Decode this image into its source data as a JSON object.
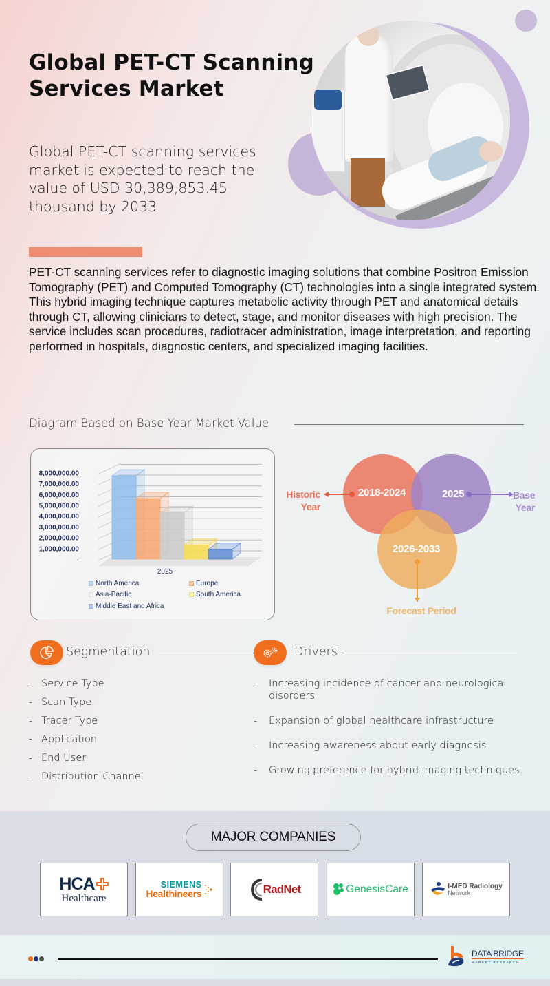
{
  "header": {
    "title": "Global PET-CT Scanning Services Market",
    "summary": "Global PET-CT scanning services market is expected to reach the value of USD 30,389,853.45 thousand by 2033."
  },
  "description": "PET-CT scanning services refer to diagnostic imaging solutions that combine Positron Emission Tomography (PET) and Computed Tomography (CT) technologies into a single integrated system. This hybrid imaging technique captures metabolic activity through PET and anatomical details through CT, allowing clinicians to detect, stage, and monitor diseases with high precision. The service includes scan procedures, radiotracer administration, image interpretation, and reporting performed in hospitals, diagnostic centers, and specialized imaging facilities.",
  "diagram": {
    "heading": "Diagram Based on Base Year Market Value"
  },
  "chart_data": {
    "type": "bar",
    "title": "",
    "xlabel": "",
    "ylabel": "",
    "categories": [
      "2025"
    ],
    "series": [
      {
        "name": "North America",
        "values": [
          7700000
        ],
        "color": "#8dbbea"
      },
      {
        "name": "Europe",
        "values": [
          5600000
        ],
        "color": "#f7a56f"
      },
      {
        "name": "Asia-Pacific",
        "values": [
          4300000
        ],
        "color": "#c9c9c9"
      },
      {
        "name": "South America",
        "values": [
          1300000
        ],
        "color": "#f7d94a"
      },
      {
        "name": "Middle East and Africa",
        "values": [
          900000
        ],
        "color": "#5f8bd6"
      }
    ],
    "y_ticks": [
      "-",
      "1,000,000.00",
      "2,000,000.00",
      "3,000,000.00",
      "4,000,000.00",
      "5,000,000.00",
      "6,000,000.00",
      "7,000,000.00",
      "8,000,000.00"
    ],
    "ylim": [
      0,
      9000000
    ],
    "grid": true,
    "legend_position": "bottom",
    "style": "3d-clustered-column"
  },
  "timeline": {
    "historic": {
      "range": "2018-2024",
      "label_line1": "Historic",
      "label_line2": "Year",
      "color": "#e8735b"
    },
    "base": {
      "range": "2025",
      "label_line1": "Base",
      "label_line2": "Year",
      "color": "#9b83c4"
    },
    "forecast": {
      "range": "2026-2033",
      "label": "Forecast Period",
      "color": "#eeac5c"
    }
  },
  "segmentation": {
    "title": "Segmentation",
    "icon": "pie-chart-icon",
    "items": [
      "Service Type",
      "Scan Type",
      "Tracer Type",
      "Application",
      "End User",
      "Distribution Channel"
    ]
  },
  "drivers": {
    "title": "Drivers",
    "icon": "gears-icon",
    "items": [
      "Increasing incidence of cancer and neurological disorders",
      "Expansion of global healthcare infrastructure",
      "Increasing awareness about early diagnosis",
      "Growing preference for hybrid imaging techniques"
    ]
  },
  "companies": {
    "title": "MAJOR COMPANIES",
    "logos": [
      {
        "name": "HCA Healthcare",
        "line1": "HCA",
        "line2": "Healthcare"
      },
      {
        "name": "Siemens Healthineers",
        "line1": "SIEMENS",
        "line2": "Healthineers"
      },
      {
        "name": "RadNet",
        "line1": "RadNet"
      },
      {
        "name": "GenesisCare",
        "line1": "GenesisCare"
      },
      {
        "name": "I-MED Radiology Network",
        "line1": "I-MED Radiology",
        "line2": "Network"
      }
    ]
  },
  "footer": {
    "brand_name": "DATA BRIDGE",
    "brand_sub": "MARKET RESEARCH",
    "dot_colors": [
      "#ef6d1d",
      "#1f3d7a",
      "#555555"
    ]
  }
}
